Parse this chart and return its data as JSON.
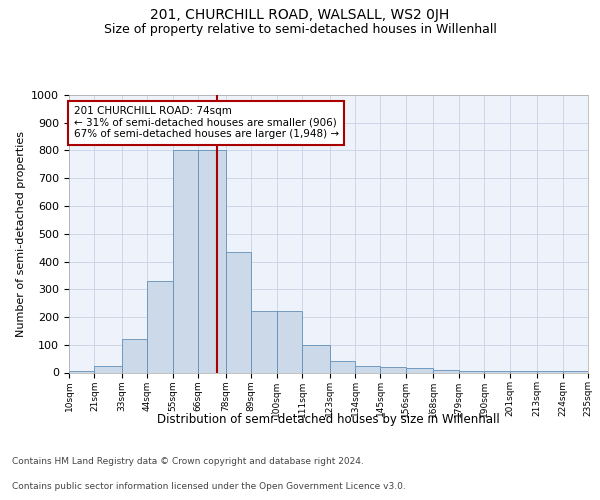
{
  "title": "201, CHURCHILL ROAD, WALSALL, WS2 0JH",
  "subtitle": "Size of property relative to semi-detached houses in Willenhall",
  "xlabel": "Distribution of semi-detached houses by size in Willenhall",
  "ylabel": "Number of semi-detached properties",
  "bar_color": "#ccd9e8",
  "bar_edge_color": "#6090b8",
  "bar_left_edges": [
    10,
    21,
    33,
    44,
    55,
    66,
    78,
    89,
    100,
    111,
    123,
    134,
    145,
    156,
    168,
    179,
    190,
    201,
    213,
    224
  ],
  "bar_widths": [
    11,
    12,
    11,
    11,
    11,
    12,
    11,
    11,
    11,
    12,
    11,
    11,
    11,
    12,
    11,
    11,
    11,
    12,
    11,
    11
  ],
  "bar_heights": [
    5,
    22,
    120,
    330,
    800,
    800,
    435,
    220,
    220,
    100,
    43,
    22,
    20,
    15,
    10,
    5,
    5,
    5,
    5,
    5
  ],
  "tick_labels": [
    "10sqm",
    "21sqm",
    "33sqm",
    "44sqm",
    "55sqm",
    "66sqm",
    "78sqm",
    "89sqm",
    "100sqm",
    "111sqm",
    "123sqm",
    "134sqm",
    "145sqm",
    "156sqm",
    "168sqm",
    "179sqm",
    "190sqm",
    "201sqm",
    "213sqm",
    "224sqm",
    "235sqm"
  ],
  "tick_positions": [
    10,
    21,
    33,
    44,
    55,
    66,
    78,
    89,
    100,
    111,
    123,
    134,
    145,
    156,
    168,
    179,
    190,
    201,
    213,
    224,
    235
  ],
  "ylim": [
    0,
    1000
  ],
  "xlim": [
    10,
    235
  ],
  "vline_x": 74,
  "vline_color": "#aa0000",
  "annotation_text": "201 CHURCHILL ROAD: 74sqm\n← 31% of semi-detached houses are smaller (906)\n67% of semi-detached houses are larger (1,948) →",
  "annotation_box_color": "#ffffff",
  "annotation_box_edge": "#aa0000",
  "footer_line1": "Contains HM Land Registry data © Crown copyright and database right 2024.",
  "footer_line2": "Contains public sector information licensed under the Open Government Licence v3.0.",
  "grid_color": "#c0cce0",
  "background_color": "#eef2fb",
  "title_fontsize": 10,
  "subtitle_fontsize": 9,
  "ylabel_fontsize": 8,
  "xlabel_fontsize": 8.5,
  "tick_fontsize": 6.5,
  "footer_fontsize": 6.5,
  "ytick_values": [
    0,
    100,
    200,
    300,
    400,
    500,
    600,
    700,
    800,
    900,
    1000
  ]
}
